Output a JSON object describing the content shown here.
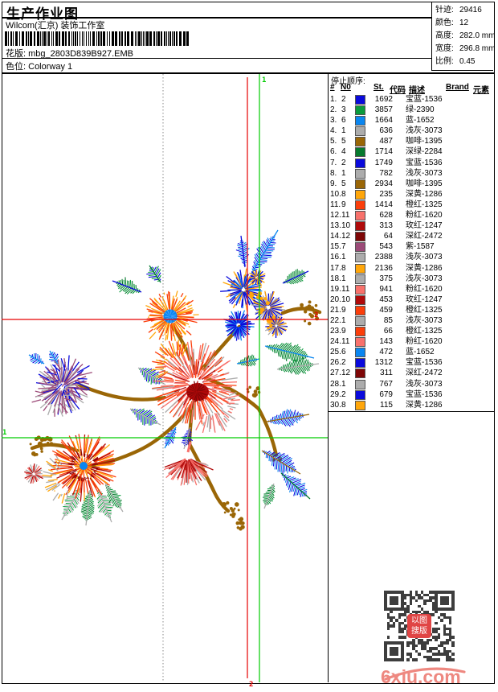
{
  "header": {
    "title": "生产作业图",
    "studio": "Wilcom(汇京) 装饰工作室",
    "pattern_label": "花版:",
    "pattern_value": "mbg_2803D839B927.EMB",
    "colorway_label": "色位:",
    "colorway_value": "Colorway 1"
  },
  "info": {
    "rows": [
      {
        "label": "针迹:",
        "value": "29416"
      },
      {
        "label": "颜色:",
        "value": "12"
      },
      {
        "label": "高度:",
        "value": "282.0 mm"
      },
      {
        "label": "宽度:",
        "value": "296.8 mm"
      },
      {
        "label": "比例:",
        "value": "0.45"
      }
    ]
  },
  "guides": {
    "start_marker": "1",
    "end_marker": "2",
    "green_color": "#00cc00",
    "red_color": "#e60000"
  },
  "table": {
    "title": "停止顺序:",
    "columns": [
      "#",
      "N0",
      "St.",
      "代码",
      "描述",
      "Brand",
      "元素"
    ],
    "rows": [
      {
        "idx": "1.",
        "needle": "2",
        "stitches": "1692",
        "desc": "宝蓝-1536",
        "color": "#0a0adc"
      },
      {
        "idx": "2.",
        "needle": "3",
        "stitches": "3857",
        "desc": "绿-2390",
        "color": "#0a9b3c"
      },
      {
        "idx": "3.",
        "needle": "6",
        "stitches": "1664",
        "desc": "蓝-1652",
        "color": "#0a86f0"
      },
      {
        "idx": "4.",
        "needle": "1",
        "stitches": "636",
        "desc": "浅灰-3073",
        "color": "#acacac"
      },
      {
        "idx": "5.",
        "needle": "5",
        "stitches": "487",
        "desc": "咖啡-1395",
        "color": "#9a6606"
      },
      {
        "idx": "6.",
        "needle": "4",
        "stitches": "1714",
        "desc": "深绿-2284",
        "color": "#067a2e"
      },
      {
        "idx": "7.",
        "needle": "2",
        "stitches": "1749",
        "desc": "宝蓝-1536",
        "color": "#0a0adc"
      },
      {
        "idx": "8.",
        "needle": "1",
        "stitches": "782",
        "desc": "浅灰-3073",
        "color": "#acacac"
      },
      {
        "idx": "9.",
        "needle": "5",
        "stitches": "2934",
        "desc": "咖啡-1395",
        "color": "#9a6606"
      },
      {
        "idx": "10.",
        "needle": "8",
        "stitches": "235",
        "desc": "深黄-1286",
        "color": "#ffa60a"
      },
      {
        "idx": "11.",
        "needle": "9",
        "stitches": "1414",
        "desc": "橙红-1325",
        "color": "#fb3e0a"
      },
      {
        "idx": "12.",
        "needle": "11",
        "stitches": "628",
        "desc": "粉红-1620",
        "color": "#f8716b"
      },
      {
        "idx": "13.",
        "needle": "10",
        "stitches": "313",
        "desc": "玫红-1247",
        "color": "#b00a0a"
      },
      {
        "idx": "14.",
        "needle": "12",
        "stitches": "64",
        "desc": "深红-2472",
        "color": "#7e0606"
      },
      {
        "idx": "15.",
        "needle": "7",
        "stitches": "543",
        "desc": "紫-1587",
        "color": "#9c4a78"
      },
      {
        "idx": "16.",
        "needle": "1",
        "stitches": "2388",
        "desc": "浅灰-3073",
        "color": "#acacac"
      },
      {
        "idx": "17.",
        "needle": "8",
        "stitches": "2136",
        "desc": "深黄-1286",
        "color": "#ffa60a"
      },
      {
        "idx": "18.",
        "needle": "1",
        "stitches": "375",
        "desc": "浅灰-3073",
        "color": "#acacac"
      },
      {
        "idx": "19.",
        "needle": "11",
        "stitches": "941",
        "desc": "粉红-1620",
        "color": "#f8716b"
      },
      {
        "idx": "20.",
        "needle": "10",
        "stitches": "453",
        "desc": "玫红-1247",
        "color": "#b00a0a"
      },
      {
        "idx": "21.",
        "needle": "9",
        "stitches": "459",
        "desc": "橙红-1325",
        "color": "#fb3e0a"
      },
      {
        "idx": "22.",
        "needle": "1",
        "stitches": "85",
        "desc": "浅灰-3073",
        "color": "#acacac"
      },
      {
        "idx": "23.",
        "needle": "9",
        "stitches": "66",
        "desc": "橙红-1325",
        "color": "#fb3e0a"
      },
      {
        "idx": "24.",
        "needle": "11",
        "stitches": "143",
        "desc": "粉红-1620",
        "color": "#f8716b"
      },
      {
        "idx": "25.",
        "needle": "6",
        "stitches": "472",
        "desc": "蓝-1652",
        "color": "#0a86f0"
      },
      {
        "idx": "26.",
        "needle": "2",
        "stitches": "1312",
        "desc": "宝蓝-1536",
        "color": "#0a0adc"
      },
      {
        "idx": "27.",
        "needle": "12",
        "stitches": "311",
        "desc": "深红-2472",
        "color": "#7e0606"
      },
      {
        "idx": "28.",
        "needle": "1",
        "stitches": "767",
        "desc": "浅灰-3073",
        "color": "#acacac"
      },
      {
        "idx": "29.",
        "needle": "2",
        "stitches": "679",
        "desc": "宝蓝-1536",
        "color": "#0a0adc"
      },
      {
        "idx": "30.",
        "needle": "8",
        "stitches": "115",
        "desc": "深黄-1286",
        "color": "#ffa60a"
      }
    ]
  },
  "thread_colors": {
    "royal": "#0a0adc",
    "green": "#0a9b3c",
    "azure": "#0a86f0",
    "gray": "#acacac",
    "coffee": "#9a6606",
    "dgreen": "#067a2e",
    "orange": "#ffa60a",
    "orangered": "#fb3e0a",
    "salmon": "#f8716b",
    "rose": "#b00a0a",
    "maroon": "#7e0606",
    "purple": "#9c4a78"
  },
  "footer": {
    "logo": "6xiu.com",
    "qr_badge_line1": "以图",
    "qr_badge_line2": "搜版"
  }
}
